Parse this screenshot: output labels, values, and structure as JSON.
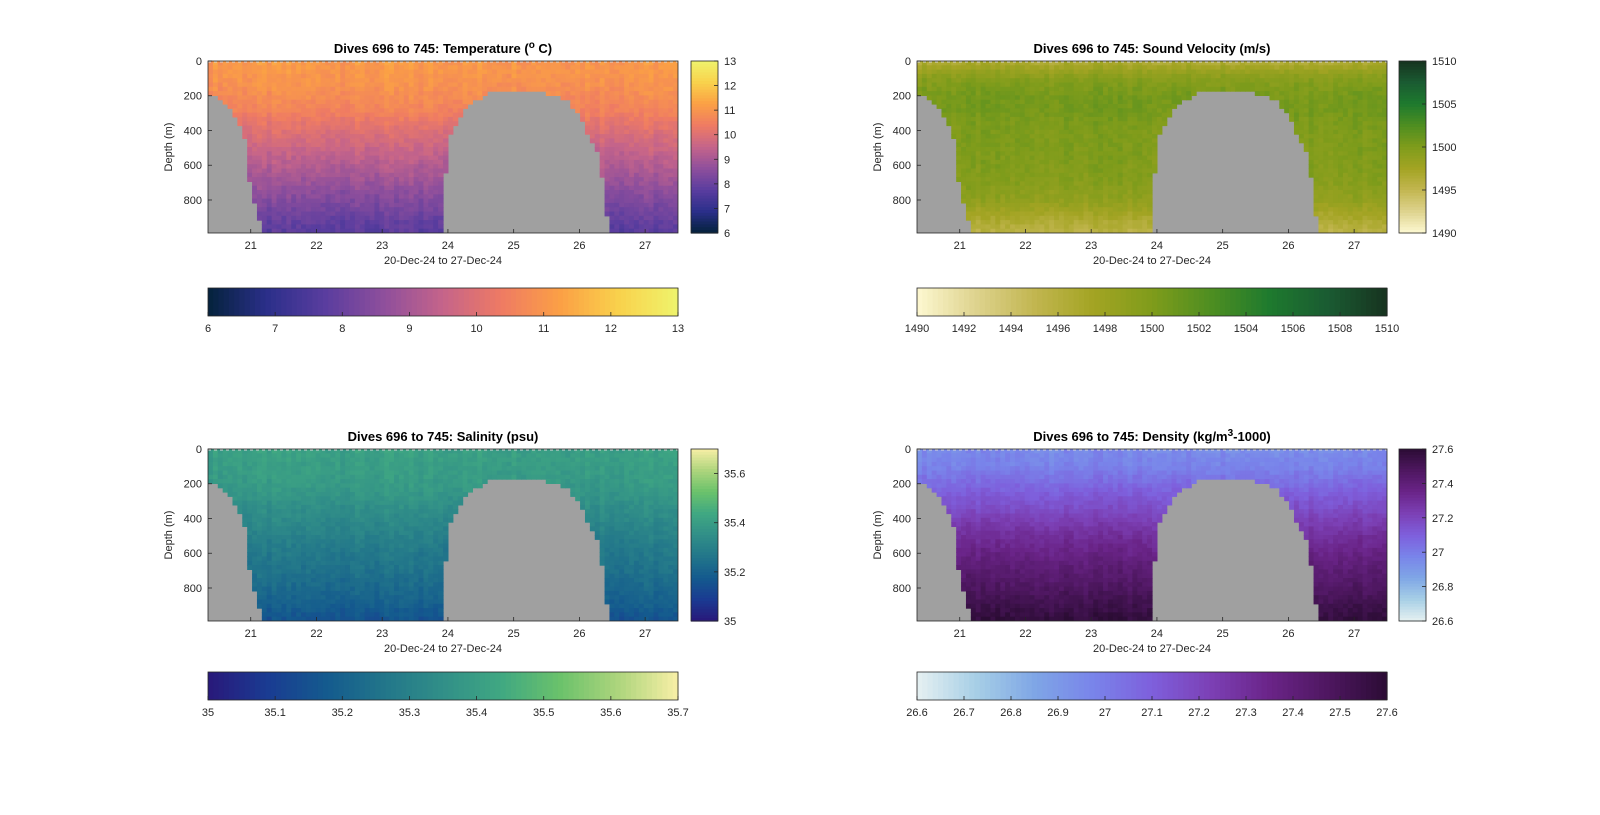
{
  "figure": {
    "background": "#ffffff"
  },
  "colors": {
    "terrain": "#a0a0a0",
    "axis": "#262626",
    "gridline_surface": "#d8d8d8",
    "thermal": [
      "#04223c",
      "#2b2f8a",
      "#5a3d9f",
      "#8f4f9c",
      "#c5648a",
      "#ef7b63",
      "#fba045",
      "#f9d24c",
      "#eff36c"
    ],
    "speed": [
      "#fdf8d1",
      "#ded38e",
      "#c2b650",
      "#a3a423",
      "#7f9c1b",
      "#4e8e21",
      "#1e7a2e",
      "#1a5b32",
      "#17331f"
    ],
    "haline": [
      "#29187a",
      "#1a3b92",
      "#145a8e",
      "#22768a",
      "#318f88",
      "#40a882",
      "#6bc26b",
      "#aed57d",
      "#f8efa6"
    ],
    "dense": [
      "#e6f1f1",
      "#a7cfe6",
      "#7fa6e6",
      "#7984ea",
      "#7e5fdc",
      "#7c40b5",
      "#6a2488",
      "#4e1760",
      "#2b0c34"
    ]
  },
  "chart_data": [
    {
      "type": "heatmap",
      "title": "Dives 696 to 745: Temperature (°C)",
      "title_main": "Dives 696 to 745: Temperature (",
      "title_sup": "o",
      "title_tail": " C)",
      "xlabel": "20-Dec-24 to 27-Dec-24",
      "ylabel": "Depth (m)",
      "x_ticks": [
        "21",
        "22",
        "23",
        "24",
        "25",
        "26",
        "27"
      ],
      "xlim": [
        20.35,
        27.5
      ],
      "y_ticks": [
        "0",
        "200",
        "400",
        "600",
        "800"
      ],
      "ylim": [
        0,
        990
      ],
      "colormap": "thermal",
      "clim": [
        6,
        13
      ],
      "colorbar_ticks": [
        "6",
        "7",
        "8",
        "9",
        "10",
        "11",
        "12",
        "13"
      ],
      "colorbar_ticks_h": [
        "6",
        "7",
        "8",
        "9",
        "10",
        "11",
        "12",
        "13"
      ],
      "profile_depths": [
        0,
        100,
        200,
        300,
        400,
        500,
        600,
        700,
        800,
        900,
        990
      ],
      "profile_values": [
        11.1,
        11.0,
        10.8,
        10.5,
        10.0,
        9.6,
        9.2,
        8.8,
        8.4,
        8.0,
        7.7
      ],
      "bottom_depth_m": [
        [
          20.35,
          200
        ],
        [
          20.5,
          210
        ],
        [
          20.7,
          280
        ],
        [
          20.9,
          420
        ],
        [
          21.0,
          750
        ],
        [
          21.2,
          990
        ],
        [
          23.9,
          990
        ],
        [
          24.0,
          440
        ],
        [
          24.3,
          260
        ],
        [
          24.6,
          180
        ],
        [
          25.0,
          180
        ],
        [
          25.5,
          185
        ],
        [
          25.8,
          220
        ],
        [
          26.0,
          320
        ],
        [
          26.3,
          540
        ],
        [
          26.45,
          990
        ],
        [
          27.5,
          990
        ]
      ]
    },
    {
      "type": "heatmap",
      "title": "Dives 696 to 745: Sound Velocity (m/s)",
      "title_main": "Dives 696 to 745: Sound Velocity (m/s)",
      "title_sup": "",
      "title_tail": "",
      "xlabel": "20-Dec-24 to 27-Dec-24",
      "ylabel": "Depth (m)",
      "x_ticks": [
        "21",
        "22",
        "23",
        "24",
        "25",
        "26",
        "27"
      ],
      "xlim": [
        20.35,
        27.5
      ],
      "y_ticks": [
        "0",
        "200",
        "400",
        "600",
        "800"
      ],
      "ylim": [
        0,
        990
      ],
      "colormap": "speed",
      "clim": [
        1490,
        1510
      ],
      "colorbar_ticks": [
        "1490",
        "1495",
        "1500",
        "1505",
        "1510"
      ],
      "colorbar_ticks_h": [
        "1490",
        "1492",
        "1494",
        "1496",
        "1498",
        "1500",
        "1502",
        "1504",
        "1506",
        "1508",
        "1510"
      ],
      "profile_depths": [
        0,
        100,
        200,
        300,
        400,
        500,
        600,
        700,
        800,
        900,
        990
      ],
      "profile_values": [
        1496.5,
        1499.5,
        1500.5,
        1500.5,
        1500.0,
        1500.0,
        1499.8,
        1499.5,
        1498.8,
        1497.0,
        1495.5
      ],
      "bottom_depth_m": [
        [
          20.35,
          200
        ],
        [
          20.5,
          210
        ],
        [
          20.7,
          280
        ],
        [
          20.9,
          420
        ],
        [
          21.0,
          750
        ],
        [
          21.2,
          990
        ],
        [
          23.9,
          990
        ],
        [
          24.0,
          440
        ],
        [
          24.3,
          260
        ],
        [
          24.6,
          180
        ],
        [
          25.0,
          180
        ],
        [
          25.5,
          185
        ],
        [
          25.8,
          220
        ],
        [
          26.0,
          320
        ],
        [
          26.3,
          540
        ],
        [
          26.45,
          990
        ],
        [
          27.5,
          990
        ]
      ]
    },
    {
      "type": "heatmap",
      "title": "Dives 696 to 745: Salinity (psu)",
      "title_main": "Dives 696 to 745: Salinity (psu)",
      "title_sup": "",
      "title_tail": "",
      "xlabel": "20-Dec-24 to 27-Dec-24",
      "ylabel": "Depth (m)",
      "x_ticks": [
        "21",
        "22",
        "23",
        "24",
        "25",
        "26",
        "27"
      ],
      "xlim": [
        20.35,
        27.5
      ],
      "y_ticks": [
        "0",
        "200",
        "400",
        "600",
        "800"
      ],
      "ylim": [
        0,
        990
      ],
      "colormap": "haline",
      "clim": [
        35,
        35.7
      ],
      "colorbar_ticks": [
        "35",
        "35.2",
        "35.4",
        "35.6"
      ],
      "colorbar_ticks_h": [
        "35",
        "35.1",
        "35.2",
        "35.3",
        "35.4",
        "35.5",
        "35.6",
        "35.7"
      ],
      "profile_depths": [
        0,
        100,
        200,
        300,
        400,
        500,
        600,
        700,
        800,
        900,
        990
      ],
      "profile_values": [
        35.41,
        35.4,
        35.39,
        35.36,
        35.33,
        35.3,
        35.27,
        35.25,
        35.22,
        35.19,
        35.15
      ],
      "bottom_depth_m": [
        [
          20.35,
          200
        ],
        [
          20.5,
          210
        ],
        [
          20.7,
          280
        ],
        [
          20.9,
          420
        ],
        [
          21.0,
          750
        ],
        [
          21.2,
          990
        ],
        [
          23.9,
          990
        ],
        [
          24.0,
          440
        ],
        [
          24.3,
          260
        ],
        [
          24.6,
          180
        ],
        [
          25.0,
          180
        ],
        [
          25.5,
          185
        ],
        [
          25.8,
          220
        ],
        [
          26.0,
          320
        ],
        [
          26.3,
          540
        ],
        [
          26.45,
          990
        ],
        [
          27.5,
          990
        ]
      ]
    },
    {
      "type": "heatmap",
      "title": "Dives 696 to 745: Density (kg/m³-1000)",
      "title_main": "Dives 696 to 745: Density (kg/m",
      "title_sup": "3",
      "title_tail": "-1000)",
      "xlabel": "20-Dec-24 to 27-Dec-24",
      "ylabel": "Depth (m)",
      "x_ticks": [
        "21",
        "22",
        "23",
        "24",
        "25",
        "26",
        "27"
      ],
      "xlim": [
        20.35,
        27.5
      ],
      "y_ticks": [
        "0",
        "200",
        "400",
        "600",
        "800"
      ],
      "ylim": [
        0,
        990
      ],
      "colormap": "dense",
      "clim": [
        26.6,
        27.6
      ],
      "colorbar_ticks": [
        "26.6",
        "26.8",
        "27",
        "27.2",
        "27.4",
        "27.6"
      ],
      "colorbar_ticks_h": [
        "26.6",
        "26.7",
        "26.8",
        "26.9",
        "27",
        "27.1",
        "27.2",
        "27.3",
        "27.4",
        "27.5",
        "27.6"
      ],
      "profile_depths": [
        0,
        100,
        200,
        300,
        400,
        500,
        600,
        700,
        800,
        900,
        990
      ],
      "profile_values": [
        26.95,
        26.98,
        27.06,
        27.14,
        27.22,
        27.3,
        27.36,
        27.42,
        27.47,
        27.53,
        27.58
      ],
      "bottom_depth_m": [
        [
          20.35,
          200
        ],
        [
          20.5,
          210
        ],
        [
          20.7,
          280
        ],
        [
          20.9,
          420
        ],
        [
          21.0,
          750
        ],
        [
          21.2,
          990
        ],
        [
          23.9,
          990
        ],
        [
          24.0,
          440
        ],
        [
          24.3,
          260
        ],
        [
          24.6,
          180
        ],
        [
          25.0,
          180
        ],
        [
          25.5,
          185
        ],
        [
          25.8,
          220
        ],
        [
          26.0,
          320
        ],
        [
          26.3,
          540
        ],
        [
          26.45,
          990
        ],
        [
          27.5,
          990
        ]
      ]
    }
  ]
}
